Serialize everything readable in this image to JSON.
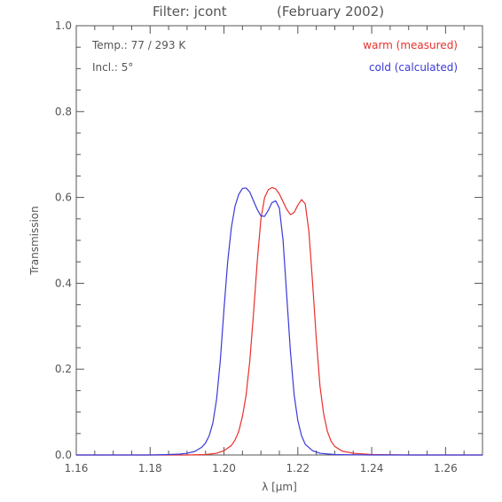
{
  "chart_data": {
    "type": "line",
    "title": "Filter: jcont",
    "subtitle": "(February 2002)",
    "xlabel": "λ [μm]",
    "ylabel": "Transmission",
    "xlim": [
      1.16,
      1.27
    ],
    "ylim": [
      0.0,
      1.0
    ],
    "x_ticks": [
      "1.16",
      "1.18",
      "1.20",
      "1.22",
      "1.24",
      "1.26"
    ],
    "y_ticks": [
      "0.0",
      "0.2",
      "0.4",
      "0.6",
      "0.8",
      "1.0"
    ],
    "grid": false,
    "legend": "top-right",
    "annotations": [
      "Temp.: 77 / 293 K",
      "Incl.: 5°"
    ],
    "series": [
      {
        "name": "warm (measured)",
        "color": "#e8302c",
        "x": [
          1.16,
          1.18,
          1.19,
          1.195,
          1.198,
          1.2,
          1.202,
          1.203,
          1.204,
          1.205,
          1.206,
          1.207,
          1.208,
          1.209,
          1.21,
          1.211,
          1.212,
          1.213,
          1.214,
          1.215,
          1.216,
          1.217,
          1.218,
          1.219,
          1.22,
          1.221,
          1.222,
          1.223,
          1.224,
          1.225,
          1.226,
          1.227,
          1.228,
          1.229,
          1.23,
          1.232,
          1.235,
          1.24,
          1.25,
          1.27
        ],
        "y": [
          0.0,
          0.0,
          0.0,
          0.001,
          0.004,
          0.01,
          0.022,
          0.035,
          0.055,
          0.09,
          0.14,
          0.22,
          0.33,
          0.45,
          0.55,
          0.6,
          0.618,
          0.623,
          0.62,
          0.608,
          0.59,
          0.572,
          0.56,
          0.565,
          0.582,
          0.595,
          0.585,
          0.52,
          0.4,
          0.27,
          0.16,
          0.095,
          0.055,
          0.032,
          0.02,
          0.009,
          0.004,
          0.001,
          0.0,
          0.0
        ]
      },
      {
        "name": "cold (calculated)",
        "color": "#3a3ad8",
        "x": [
          1.16,
          1.18,
          1.185,
          1.188,
          1.19,
          1.192,
          1.194,
          1.195,
          1.196,
          1.197,
          1.198,
          1.199,
          1.2,
          1.201,
          1.202,
          1.203,
          1.204,
          1.205,
          1.206,
          1.207,
          1.208,
          1.209,
          1.21,
          1.211,
          1.212,
          1.213,
          1.214,
          1.215,
          1.216,
          1.217,
          1.218,
          1.219,
          1.22,
          1.221,
          1.222,
          1.224,
          1.226,
          1.23,
          1.24,
          1.27
        ],
        "y": [
          0.0,
          0.0,
          0.001,
          0.002,
          0.004,
          0.008,
          0.018,
          0.028,
          0.045,
          0.075,
          0.13,
          0.22,
          0.34,
          0.45,
          0.53,
          0.58,
          0.607,
          0.621,
          0.622,
          0.612,
          0.592,
          0.572,
          0.557,
          0.556,
          0.57,
          0.588,
          0.592,
          0.575,
          0.5,
          0.37,
          0.24,
          0.14,
          0.08,
          0.045,
          0.025,
          0.01,
          0.004,
          0.001,
          0.0,
          0.0
        ]
      }
    ]
  }
}
